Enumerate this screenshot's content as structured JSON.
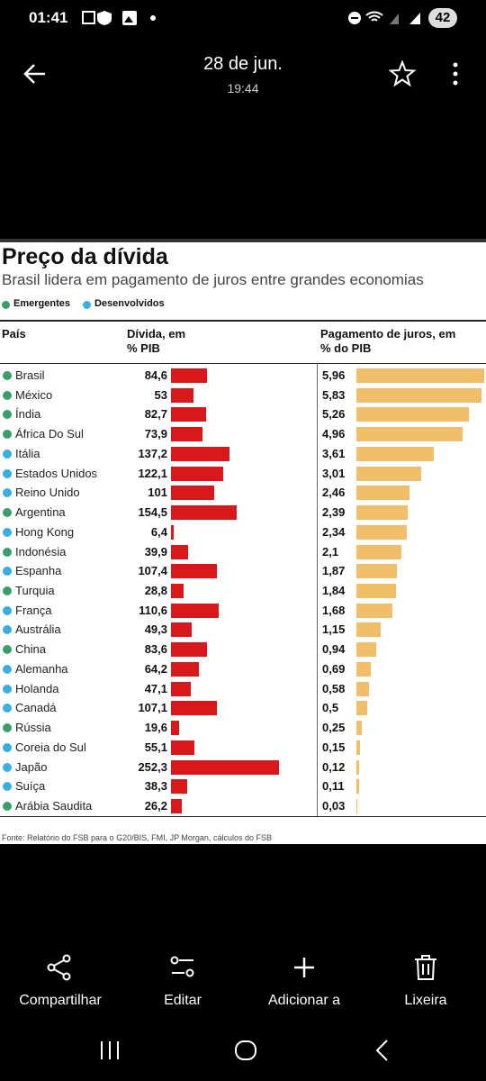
{
  "status_bar": {
    "time": "01:41",
    "battery": "42"
  },
  "header": {
    "title": "28 de jun.",
    "subtitle": "19:44"
  },
  "chart_data": {
    "type": "bar",
    "title": "Preço da dívida",
    "subtitle": "Brasil lidera em pagamento de juros entre grandes economias",
    "legend": [
      {
        "name": "Emergentes",
        "color": "#3a9e6a"
      },
      {
        "name": "Desenvolvidos",
        "color": "#3aaee0"
      }
    ],
    "category_label": "País",
    "categories": [
      "Brasil",
      "México",
      "Índia",
      "África Do Sul",
      "Itália",
      "Estados Unidos",
      "Reino Unido",
      "Argentina",
      "Hong Kong",
      "Indonésia",
      "Espanha",
      "Turquia",
      "França",
      "Austrália",
      "China",
      "Alemanha",
      "Holanda",
      "Canadá",
      "Rússia",
      "Coreia do Sul",
      "Japão",
      "Suíça",
      "Arábia Saudita"
    ],
    "category_groups": [
      "Emergentes",
      "Emergentes",
      "Emergentes",
      "Emergentes",
      "Desenvolvidos",
      "Desenvolvidos",
      "Desenvolvidos",
      "Emergentes",
      "Desenvolvidos",
      "Emergentes",
      "Desenvolvidos",
      "Emergentes",
      "Desenvolvidos",
      "Desenvolvidos",
      "Emergentes",
      "Desenvolvidos",
      "Desenvolvidos",
      "Desenvolvidos",
      "Emergentes",
      "Desenvolvidos",
      "Desenvolvidos",
      "Desenvolvidos",
      "Emergentes"
    ],
    "series": [
      {
        "name": "Dívida, em % PIB",
        "color": "#d7191c",
        "values": [
          84.6,
          53,
          82.7,
          73.9,
          137.2,
          122.1,
          101,
          154.5,
          6.4,
          39.9,
          107.4,
          28.8,
          110.6,
          49.3,
          83.6,
          64.2,
          47.1,
          107.1,
          19.6,
          55.1,
          252.3,
          38.3,
          26.2
        ],
        "value_labels": [
          "84,6",
          "53",
          "82,7",
          "73,9",
          "137,2",
          "122,1",
          "101",
          "154,5",
          "6,4",
          "39,9",
          "107,4",
          "28,8",
          "110,6",
          "49,3",
          "83,6",
          "64,2",
          "47,1",
          "107,1",
          "19,6",
          "55,1",
          "252,3",
          "38,3",
          "26,2"
        ]
      },
      {
        "name": "Pagamento de juros, em % do PIB",
        "color": "#f0bd6a",
        "values": [
          5.96,
          5.83,
          5.26,
          4.96,
          3.61,
          3.01,
          2.46,
          2.39,
          2.34,
          2.1,
          1.87,
          1.84,
          1.68,
          1.15,
          0.94,
          0.69,
          0.58,
          0.5,
          0.25,
          0.15,
          0.12,
          0.11,
          0.03
        ],
        "value_labels": [
          "5,96",
          "5,83",
          "5,26",
          "4,96",
          "3,61",
          "3,01",
          "2,46",
          "2,39",
          "2,34",
          "2,1",
          "1,87",
          "1,84",
          "1,68",
          "1,15",
          "0,94",
          "0,69",
          "0,58",
          "0,5",
          "0,25",
          "0,15",
          "0,12",
          "0,11",
          "0,03"
        ]
      }
    ],
    "source": "Fonte: Relatório do FSB para o G20/BIS, FMI, JP Morgan, cálculos do FSB"
  },
  "actions": [
    "Compartilhar",
    "Editar",
    "Adicionar a",
    "Lixeira"
  ]
}
